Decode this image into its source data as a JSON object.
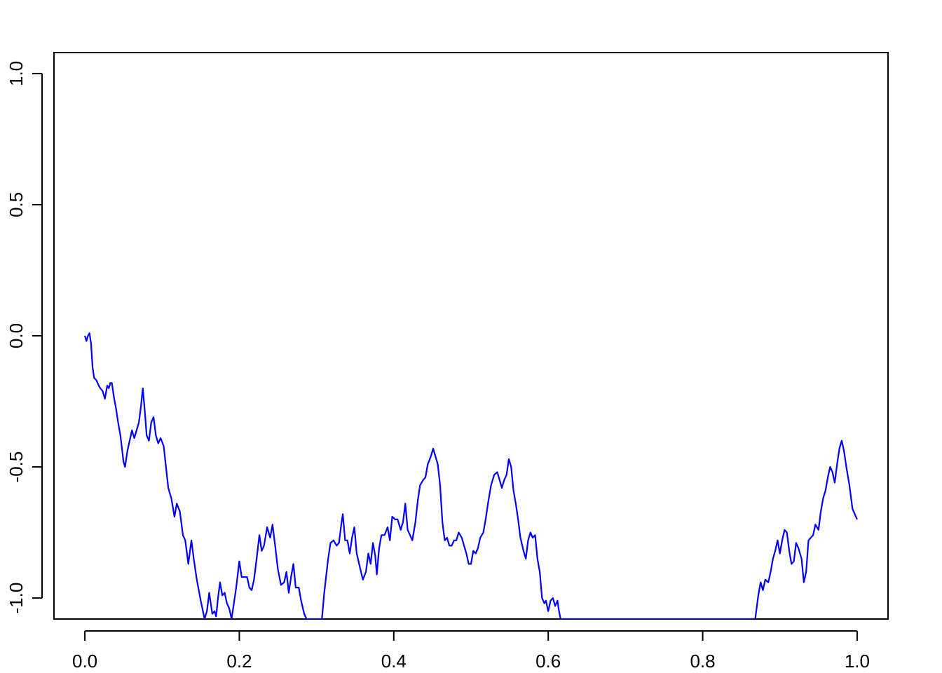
{
  "chart_data": {
    "type": "line",
    "title": "",
    "xlabel": "",
    "ylabel": "",
    "xlim": [
      -0.04,
      1.04
    ],
    "ylim": [
      -1.08,
      1.08
    ],
    "grid": false,
    "x_ticks": [
      0.0,
      0.2,
      0.4,
      0.6,
      0.8,
      1.0
    ],
    "x_tick_labels": [
      "0.0",
      "0.2",
      "0.4",
      "0.6",
      "0.8",
      "1.0"
    ],
    "y_ticks": [
      -1.0,
      -0.5,
      0.0,
      0.5,
      1.0
    ],
    "y_tick_labels": [
      "-1.0",
      "-0.5",
      "0.0",
      "0.5",
      "1.0"
    ],
    "series": [
      {
        "color": "#0000ff",
        "points": [
          [
            0.0,
            0.0
          ],
          [
            0.002,
            -0.02
          ],
          [
            0.004,
            0.0
          ],
          [
            0.006,
            0.01
          ],
          [
            0.008,
            -0.03
          ],
          [
            0.01,
            -0.12
          ],
          [
            0.012,
            -0.16
          ],
          [
            0.015,
            -0.17
          ],
          [
            0.018,
            -0.19
          ],
          [
            0.02,
            -0.2
          ],
          [
            0.023,
            -0.21
          ],
          [
            0.026,
            -0.24
          ],
          [
            0.029,
            -0.19
          ],
          [
            0.031,
            -0.2
          ],
          [
            0.033,
            -0.18
          ],
          [
            0.035,
            -0.18
          ],
          [
            0.038,
            -0.24
          ],
          [
            0.04,
            -0.27
          ],
          [
            0.043,
            -0.33
          ],
          [
            0.046,
            -0.38
          ],
          [
            0.05,
            -0.48
          ],
          [
            0.052,
            -0.5
          ],
          [
            0.055,
            -0.44
          ],
          [
            0.058,
            -0.4
          ],
          [
            0.061,
            -0.36
          ],
          [
            0.064,
            -0.39
          ],
          [
            0.067,
            -0.36
          ],
          [
            0.07,
            -0.33
          ],
          [
            0.073,
            -0.26
          ],
          [
            0.075,
            -0.2
          ],
          [
            0.078,
            -0.3
          ],
          [
            0.08,
            -0.38
          ],
          [
            0.083,
            -0.4
          ],
          [
            0.086,
            -0.33
          ],
          [
            0.089,
            -0.31
          ],
          [
            0.092,
            -0.38
          ],
          [
            0.095,
            -0.41
          ],
          [
            0.098,
            -0.39
          ],
          [
            0.102,
            -0.42
          ],
          [
            0.105,
            -0.5
          ],
          [
            0.108,
            -0.58
          ],
          [
            0.112,
            -0.62
          ],
          [
            0.116,
            -0.69
          ],
          [
            0.119,
            -0.64
          ],
          [
            0.123,
            -0.67
          ],
          [
            0.127,
            -0.76
          ],
          [
            0.13,
            -0.78
          ],
          [
            0.134,
            -0.87
          ],
          [
            0.138,
            -0.78
          ],
          [
            0.141,
            -0.85
          ],
          [
            0.145,
            -0.93
          ],
          [
            0.15,
            -1.01
          ],
          [
            0.155,
            -1.08
          ],
          [
            0.158,
            -1.05
          ],
          [
            0.161,
            -0.98
          ],
          [
            0.163,
            -1.02
          ],
          [
            0.165,
            -1.06
          ],
          [
            0.168,
            -1.05
          ],
          [
            0.17,
            -1.07
          ],
          [
            0.172,
            -1.01
          ],
          [
            0.175,
            -0.94
          ],
          [
            0.178,
            -0.99
          ],
          [
            0.181,
            -0.98
          ],
          [
            0.184,
            -1.02
          ],
          [
            0.187,
            -1.04
          ],
          [
            0.19,
            -1.08
          ],
          [
            0.193,
            -1.02
          ],
          [
            0.196,
            -0.96
          ],
          [
            0.2,
            -0.86
          ],
          [
            0.203,
            -0.92
          ],
          [
            0.206,
            -0.92
          ],
          [
            0.21,
            -0.92
          ],
          [
            0.213,
            -0.96
          ],
          [
            0.216,
            -0.97
          ],
          [
            0.219,
            -0.93
          ],
          [
            0.222,
            -0.86
          ],
          [
            0.226,
            -0.76
          ],
          [
            0.229,
            -0.82
          ],
          [
            0.232,
            -0.8
          ],
          [
            0.236,
            -0.73
          ],
          [
            0.24,
            -0.77
          ],
          [
            0.243,
            -0.72
          ],
          [
            0.246,
            -0.79
          ],
          [
            0.25,
            -0.89
          ],
          [
            0.254,
            -0.95
          ],
          [
            0.258,
            -0.94
          ],
          [
            0.261,
            -0.9
          ],
          [
            0.264,
            -0.98
          ],
          [
            0.267,
            -0.92
          ],
          [
            0.27,
            -0.87
          ],
          [
            0.273,
            -0.96
          ],
          [
            0.277,
            -0.96
          ],
          [
            0.28,
            -1.01
          ],
          [
            0.284,
            -1.06
          ],
          [
            0.287,
            -1.08
          ],
          [
            0.307,
            -1.08
          ],
          [
            0.31,
            -0.98
          ],
          [
            0.315,
            -0.85
          ],
          [
            0.318,
            -0.79
          ],
          [
            0.322,
            -0.78
          ],
          [
            0.326,
            -0.8
          ],
          [
            0.329,
            -0.79
          ],
          [
            0.332,
            -0.72
          ],
          [
            0.334,
            -0.68
          ],
          [
            0.337,
            -0.78
          ],
          [
            0.34,
            -0.78
          ],
          [
            0.343,
            -0.83
          ],
          [
            0.346,
            -0.77
          ],
          [
            0.349,
            -0.73
          ],
          [
            0.352,
            -0.83
          ],
          [
            0.356,
            -0.88
          ],
          [
            0.36,
            -0.93
          ],
          [
            0.364,
            -0.9
          ],
          [
            0.367,
            -0.83
          ],
          [
            0.37,
            -0.87
          ],
          [
            0.373,
            -0.79
          ],
          [
            0.376,
            -0.84
          ],
          [
            0.378,
            -0.91
          ],
          [
            0.381,
            -0.81
          ],
          [
            0.384,
            -0.76
          ],
          [
            0.388,
            -0.76
          ],
          [
            0.392,
            -0.73
          ],
          [
            0.395,
            -0.78
          ],
          [
            0.398,
            -0.69
          ],
          [
            0.402,
            -0.7
          ],
          [
            0.405,
            -0.7
          ],
          [
            0.409,
            -0.74
          ],
          [
            0.412,
            -0.71
          ],
          [
            0.415,
            -0.64
          ],
          [
            0.418,
            -0.74
          ],
          [
            0.421,
            -0.76
          ],
          [
            0.424,
            -0.78
          ],
          [
            0.428,
            -0.71
          ],
          [
            0.431,
            -0.63
          ],
          [
            0.434,
            -0.57
          ],
          [
            0.438,
            -0.55
          ],
          [
            0.441,
            -0.54
          ],
          [
            0.444,
            -0.49
          ],
          [
            0.448,
            -0.46
          ],
          [
            0.451,
            -0.43
          ],
          [
            0.454,
            -0.46
          ],
          [
            0.457,
            -0.49
          ],
          [
            0.46,
            -0.57
          ],
          [
            0.463,
            -0.71
          ],
          [
            0.466,
            -0.78
          ],
          [
            0.469,
            -0.77
          ],
          [
            0.472,
            -0.8
          ],
          [
            0.475,
            -0.8
          ],
          [
            0.478,
            -0.78
          ],
          [
            0.481,
            -0.78
          ],
          [
            0.484,
            -0.75
          ],
          [
            0.488,
            -0.77
          ],
          [
            0.491,
            -0.8
          ],
          [
            0.494,
            -0.83
          ],
          [
            0.497,
            -0.87
          ],
          [
            0.5,
            -0.87
          ],
          [
            0.503,
            -0.82
          ],
          [
            0.506,
            -0.83
          ],
          [
            0.509,
            -0.81
          ],
          [
            0.512,
            -0.77
          ],
          [
            0.516,
            -0.75
          ],
          [
            0.519,
            -0.7
          ],
          [
            0.522,
            -0.64
          ],
          [
            0.526,
            -0.57
          ],
          [
            0.53,
            -0.53
          ],
          [
            0.534,
            -0.52
          ],
          [
            0.537,
            -0.55
          ],
          [
            0.54,
            -0.58
          ],
          [
            0.543,
            -0.55
          ],
          [
            0.546,
            -0.53
          ],
          [
            0.549,
            -0.47
          ],
          [
            0.552,
            -0.5
          ],
          [
            0.555,
            -0.59
          ],
          [
            0.558,
            -0.64
          ],
          [
            0.561,
            -0.7
          ],
          [
            0.564,
            -0.77
          ],
          [
            0.568,
            -0.82
          ],
          [
            0.571,
            -0.85
          ],
          [
            0.574,
            -0.78
          ],
          [
            0.577,
            -0.75
          ],
          [
            0.58,
            -0.77
          ],
          [
            0.583,
            -0.76
          ],
          [
            0.586,
            -0.85
          ],
          [
            0.589,
            -0.9
          ],
          [
            0.592,
            -1.0
          ],
          [
            0.595,
            -1.02
          ],
          [
            0.597,
            -1.01
          ],
          [
            0.6,
            -1.05
          ],
          [
            0.603,
            -1.01
          ],
          [
            0.606,
            -1.0
          ],
          [
            0.609,
            -1.03
          ],
          [
            0.612,
            -1.01
          ],
          [
            0.614,
            -1.05
          ],
          [
            0.616,
            -1.08
          ],
          [
            0.868,
            -1.08
          ],
          [
            0.872,
            -0.99
          ],
          [
            0.875,
            -0.94
          ],
          [
            0.878,
            -0.97
          ],
          [
            0.881,
            -0.93
          ],
          [
            0.885,
            -0.94
          ],
          [
            0.888,
            -0.9
          ],
          [
            0.891,
            -0.85
          ],
          [
            0.894,
            -0.82
          ],
          [
            0.897,
            -0.78
          ],
          [
            0.9,
            -0.83
          ],
          [
            0.903,
            -0.78
          ],
          [
            0.906,
            -0.74
          ],
          [
            0.909,
            -0.75
          ],
          [
            0.912,
            -0.82
          ],
          [
            0.915,
            -0.87
          ],
          [
            0.918,
            -0.86
          ],
          [
            0.921,
            -0.79
          ],
          [
            0.924,
            -0.81
          ],
          [
            0.928,
            -0.85
          ],
          [
            0.931,
            -0.94
          ],
          [
            0.934,
            -0.9
          ],
          [
            0.937,
            -0.78
          ],
          [
            0.94,
            -0.77
          ],
          [
            0.943,
            -0.76
          ],
          [
            0.946,
            -0.72
          ],
          [
            0.95,
            -0.74
          ],
          [
            0.953,
            -0.67
          ],
          [
            0.956,
            -0.62
          ],
          [
            0.959,
            -0.59
          ],
          [
            0.962,
            -0.54
          ],
          [
            0.965,
            -0.5
          ],
          [
            0.968,
            -0.52
          ],
          [
            0.971,
            -0.56
          ],
          [
            0.974,
            -0.49
          ],
          [
            0.977,
            -0.43
          ],
          [
            0.98,
            -0.4
          ],
          [
            0.983,
            -0.44
          ],
          [
            0.986,
            -0.5
          ],
          [
            0.99,
            -0.57
          ],
          [
            0.994,
            -0.66
          ],
          [
            1.0,
            -0.7
          ]
        ]
      }
    ]
  }
}
